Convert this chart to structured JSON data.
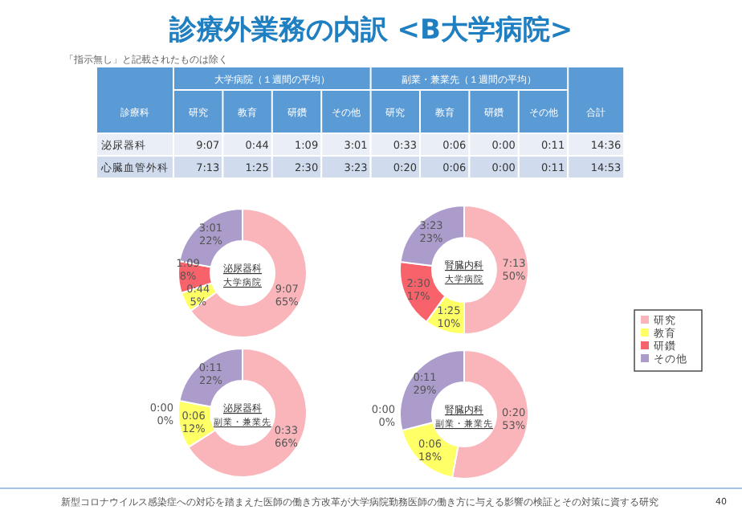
{
  "chart_data": [
    {
      "type": "other",
      "title": "診療外業務の内訳 <B大学病院>",
      "subtitle": "「指示無し」と記載されたものは除く",
      "ylabel": "診療科",
      "categories": [
        "研究",
        "教育",
        "研鑽",
        "その他",
        "研究",
        "教育",
        "研鑽",
        "その他",
        "合計"
      ],
      "y_categories": [
        "泌尿器科",
        "心臓血管外科"
      ],
      "cell_labels": [
        [
          "9:07",
          "0:44",
          "1:09",
          "3:01",
          "0:33",
          "0:06",
          "0:00",
          "0:11",
          "14:36"
        ],
        [
          "7:13",
          "1:25",
          "2:30",
          "3:23",
          "0:20",
          "0:06",
          "0:00",
          "0:11",
          "14:53"
        ]
      ],
      "annotations": [
        "大学病院（１週間の平均）",
        "副業・兼業先（１週間の平均）",
        "新型コロナウイルス感染症への対応を踏まえた医師の働き方改革が大学病院勤務医師の働き方に与える影響の検証とその対策に資する研究",
        "40"
      ]
    },
    {
      "type": "donut",
      "title": "泌尿器科",
      "subtitle": "大学病院",
      "values": [
        65,
        5,
        8,
        22
      ],
      "colors": [
        "#f9b5ba",
        "#ffff66",
        "#f8636b",
        "#ab9ccb"
      ],
      "value_labels": [
        "9:07\n65%",
        "0:44\n5%",
        "1:09\n8%",
        "3:01\n22%"
      ]
    },
    {
      "type": "donut",
      "title": "腎臓内科",
      "subtitle": "大学病院",
      "categories": [
        "研究",
        "教育",
        "研鑽",
        "その他"
      ],
      "values": [
        50,
        10,
        17,
        23
      ],
      "colors": [
        "#f9b5ba",
        "#ffff66",
        "#f8636b",
        "#ab9ccb"
      ],
      "value_labels": [
        "7:13\n50%",
        "1:25\n10%",
        "2:30\n17%",
        "3:23\n23%"
      ],
      "legend": "right"
    },
    {
      "type": "donut",
      "title": "泌尿器科",
      "subtitle": "副業・兼業先",
      "values": [
        66,
        12,
        0,
        22
      ],
      "colors": [
        "#f9b5ba",
        "#ffff66",
        "#f8636b",
        "#ab9ccb"
      ],
      "value_labels": [
        "0:33\n66%",
        "0:06\n12%",
        "0:00\n0%",
        "0:11\n22%"
      ]
    },
    {
      "type": "donut",
      "title": "腎臓内科",
      "subtitle": "副業・兼業先",
      "values": [
        53,
        18,
        0,
        29
      ],
      "colors": [
        "#f9b5ba",
        "#ffff66",
        "#f8636b",
        "#ab9ccb"
      ],
      "value_labels": [
        "0:20\n53%",
        "0:06\n18%",
        "0:00\n0%",
        "0:11\n29%"
      ]
    }
  ]
}
